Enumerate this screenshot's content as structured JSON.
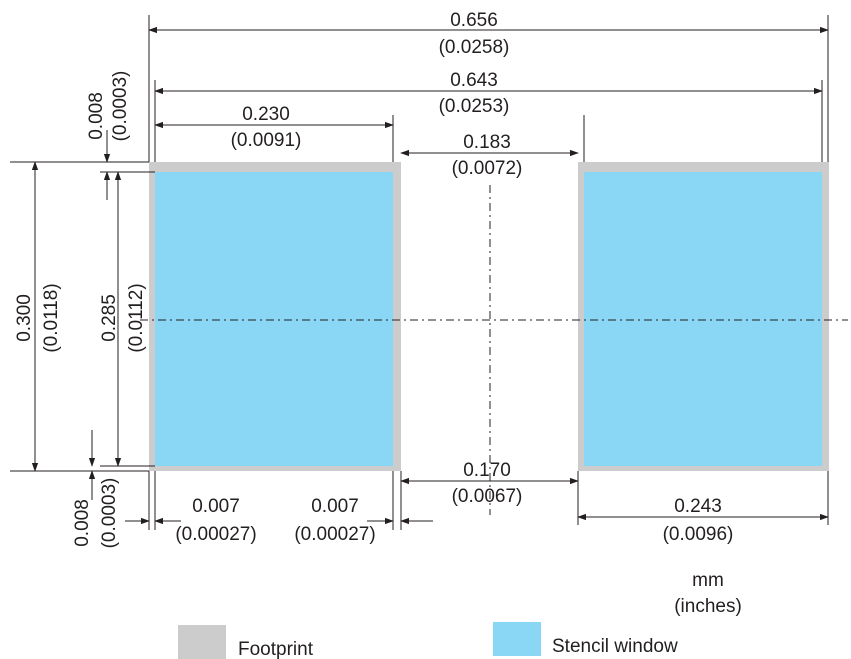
{
  "colors": {
    "footprint": "#cccccc",
    "stencil": "#8ad7f5",
    "line": "#231f20"
  },
  "dimensions": {
    "overall_width": {
      "mm": "0.656",
      "in": "(0.0258)"
    },
    "outer_width": {
      "mm": "0.643",
      "in": "(0.0253)"
    },
    "pad_width": {
      "mm": "0.230",
      "in": "(0.0091)"
    },
    "gap_top": {
      "mm": "0.183",
      "in": "(0.0072)"
    },
    "gap_bottom": {
      "mm": "0.170",
      "in": "(0.0067)"
    },
    "right_window_width": {
      "mm": "0.243",
      "in": "(0.0096)"
    },
    "top_margin": {
      "mm": "0.008",
      "in": "(0.0003)"
    },
    "bottom_margin": {
      "mm": "0.008",
      "in": "(0.0003)"
    },
    "overall_height": {
      "mm": "0.300",
      "in": "(0.0118)"
    },
    "window_height": {
      "mm": "0.285",
      "in": "(0.0112)"
    },
    "left_inset": {
      "mm": "0.007",
      "in": "(0.00027)"
    },
    "right_inset": {
      "mm": "0.007",
      "in": "(0.00027)"
    }
  },
  "units": {
    "primary": "mm",
    "secondary": "(inches)"
  },
  "legend": {
    "footprint": {
      "label": "Footprint",
      "icon": "gray-square"
    },
    "stencil": {
      "label": "Stencil window",
      "icon": "blue-square"
    }
  }
}
